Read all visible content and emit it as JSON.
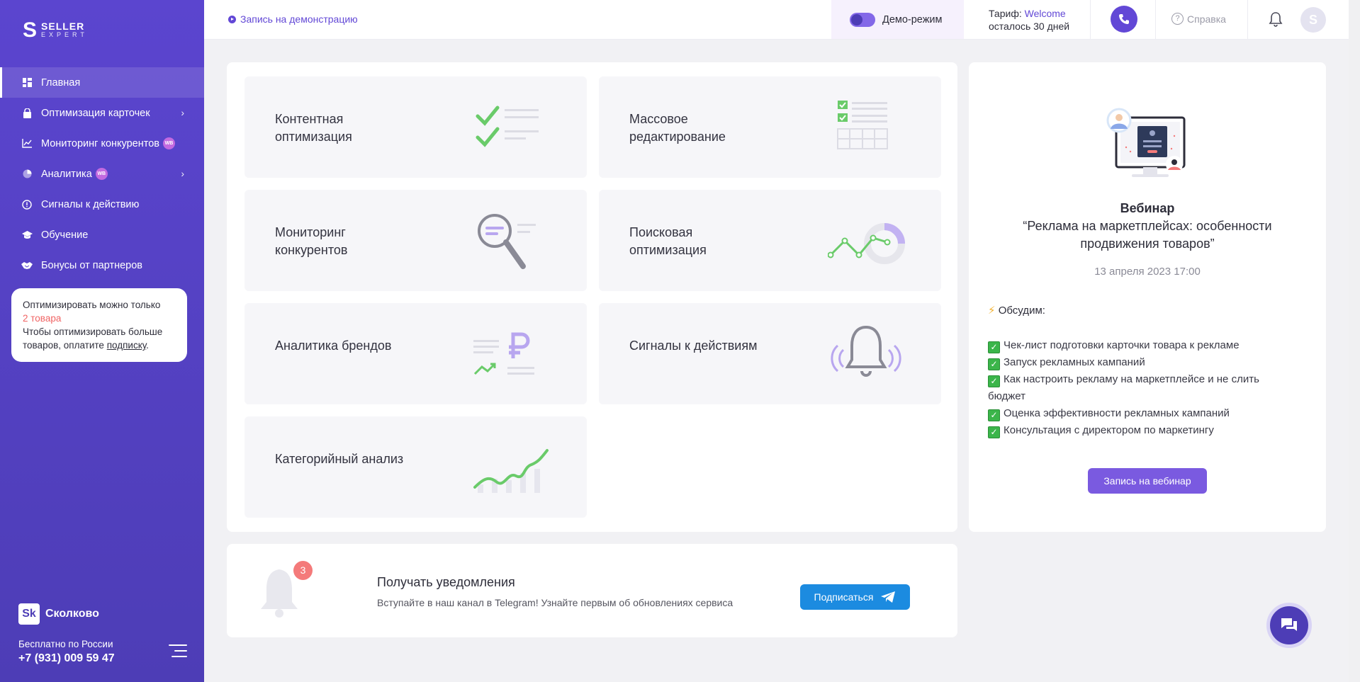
{
  "sidebar": {
    "logo_mark": "S",
    "logo_line1": "SELLER",
    "logo_line2": "EXPERT",
    "items": [
      {
        "label": "Главная"
      },
      {
        "label": "Оптимизация карточек"
      },
      {
        "label": "Мониторинг конкурентов",
        "badge": "WB"
      },
      {
        "label": "Аналитика",
        "badge": "WB"
      },
      {
        "label": "Сигналы к действию"
      },
      {
        "label": "Обучение"
      },
      {
        "label": "Бонусы от партнеров"
      }
    ],
    "promo": {
      "line1": "Оптимизировать можно только",
      "highlight": "2 товара",
      "line2": "Чтобы оптимизировать больше товаров, оплатите",
      "link": "подписку",
      "end": "."
    },
    "skolkovo_badge": "Sk",
    "skolkovo": "Сколково",
    "phone_label": "Бесплатно по России",
    "phone": "+7 (931) 009 59 47"
  },
  "topbar": {
    "demo_link": "Запись на демонстрацию",
    "demo_mode": "Демо-режим",
    "tariff_prefix": "Тариф:",
    "tariff_name": "Welcome",
    "tariff_left": "осталось 30 дней",
    "help": "Справка",
    "avatar": "S"
  },
  "tiles": [
    {
      "title": "Контентная оптимизация",
      "icon": "checklist-icon"
    },
    {
      "title": "Массовое редактирование",
      "icon": "table-edit-icon"
    },
    {
      "title": "Мониторинг конкурентов",
      "icon": "magnifier-icon"
    },
    {
      "title": "Поисковая оптимизация",
      "icon": "search-chart-icon"
    },
    {
      "title": "Аналитика брендов",
      "icon": "ruble-chart-icon"
    },
    {
      "title": "Сигналы к действиям",
      "icon": "bell-icon"
    },
    {
      "title": "Категорийный анализ",
      "icon": "growth-chart-icon"
    }
  ],
  "webinar": {
    "label": "Вебинар",
    "title_line1": "“Реклама на маркетплейсах: особенности",
    "title_line2": "продвижения товаров”",
    "date": "13 апреля 2023 17:00",
    "discuss": "Обсудим:",
    "agenda": [
      "Чек-лист подготовки карточки товара к рекламе",
      "Запуск рекламных кампаний",
      "Как настроить рекламу на маркетплейсе и не слить бюджет",
      "Оценка эффективности рекламных кампаний",
      "Консультация с директором по маркетингу"
    ],
    "button": "Запись на вебинар"
  },
  "notify": {
    "badge": "3",
    "title": "Получать уведомления",
    "subtitle": "Вступайте в наш канал в Telegram! Узнайте первым об обновлениях сервиса",
    "button": "Подписаться"
  },
  "colors": {
    "accent": "#6248d6",
    "sidebar": "#5b45cf",
    "green": "#6acb6a",
    "telegram": "#1c8be0"
  }
}
